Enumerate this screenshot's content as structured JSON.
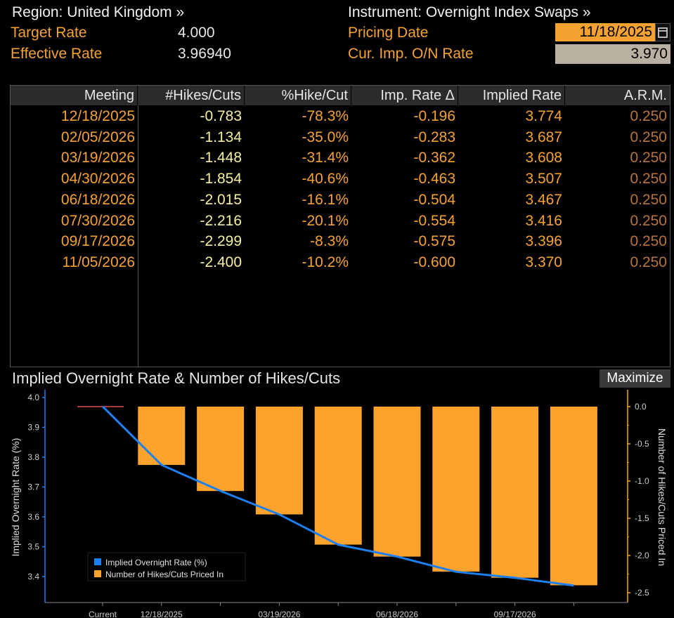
{
  "header": {
    "region_label": "Region: United Kingdom »",
    "instrument_label": "Instrument: Overnight Index Swaps »",
    "target_rate_label": "Target Rate",
    "target_rate_value": "4.000",
    "effective_rate_label": "Effective Rate",
    "effective_rate_value": "3.96940",
    "pricing_date_label": "Pricing Date",
    "pricing_date_value": "11/18/2025",
    "cur_imp_label": "Cur. Imp. O/N Rate",
    "cur_imp_value": "3.970"
  },
  "table": {
    "columns": [
      "Meeting",
      "#Hikes/Cuts",
      "%Hike/Cut",
      "Imp. Rate Δ",
      "Implied Rate",
      "A.R.M."
    ],
    "rows": [
      [
        "12/18/2025",
        "-0.783",
        "-78.3%",
        "-0.196",
        "3.774",
        "0.250"
      ],
      [
        "02/05/2026",
        "-1.134",
        "-35.0%",
        "-0.283",
        "3.687",
        "0.250"
      ],
      [
        "03/19/2026",
        "-1.448",
        "-31.4%",
        "-0.362",
        "3.608",
        "0.250"
      ],
      [
        "04/30/2026",
        "-1.854",
        "-40.6%",
        "-0.463",
        "3.507",
        "0.250"
      ],
      [
        "06/18/2026",
        "-2.015",
        "-16.1%",
        "-0.504",
        "3.467",
        "0.250"
      ],
      [
        "07/30/2026",
        "-2.216",
        "-20.1%",
        "-0.554",
        "3.416",
        "0.250"
      ],
      [
        "09/17/2026",
        "-2.299",
        "-8.3%",
        "-0.575",
        "3.396",
        "0.250"
      ],
      [
        "11/05/2026",
        "-2.400",
        "-10.2%",
        "-0.600",
        "3.370",
        "0.250"
      ]
    ]
  },
  "chart_panel": {
    "title": "Implied Overnight Rate & Number of Hikes/Cuts",
    "maximize_label": "Maximize"
  },
  "colors": {
    "accent_orange": "#f4a232",
    "line_blue": "#1e7ff0",
    "bar_orange": "#fca32e"
  },
  "chart_data": {
    "type": "bar",
    "categories": [
      "Current",
      "12/18/2025",
      "02/05/2026",
      "03/19/2026",
      "04/30/2026",
      "06/18/2026",
      "07/30/2026",
      "09/17/2026",
      "11/05/2026"
    ],
    "x_tick_labels": [
      "Current",
      "12/18/2025",
      "03/19/2026",
      "06/18/2026",
      "09/17/2026"
    ],
    "series": [
      {
        "name": "Implied Overnight Rate (%)",
        "type": "line",
        "axis": "left",
        "values": [
          3.97,
          3.774,
          3.687,
          3.608,
          3.507,
          3.467,
          3.416,
          3.396,
          3.37
        ]
      },
      {
        "name": "Number of Hikes/Cuts Priced In",
        "type": "bar",
        "axis": "right",
        "values": [
          null,
          -0.783,
          -1.134,
          -1.448,
          -1.854,
          -2.015,
          -2.216,
          -2.299,
          -2.4
        ]
      }
    ],
    "current_target_rate": 4.0,
    "ylabel": "Implied Overnight Rate (%)",
    "y2label": "Number of Hikes/Cuts Priced In",
    "ylim": [
      3.33,
      4.01
    ],
    "y2lim": [
      -2.5,
      0.1
    ],
    "yticks": [
      4.0,
      3.9,
      3.8,
      3.7,
      3.6,
      3.5,
      3.4
    ],
    "y2ticks": [
      0.0,
      -0.5,
      -1.0,
      -1.5,
      -2.0,
      -2.5
    ],
    "ytick_labels": [
      "4.0",
      "3.9",
      "3.8",
      "3.7",
      "3.6",
      "3.5",
      "3.4"
    ],
    "y2tick_labels": [
      "0.0",
      "-0.5",
      "-1.0",
      "-1.5",
      "-2.0",
      "-2.5"
    ],
    "legend": "bottom-left",
    "grid": false
  }
}
